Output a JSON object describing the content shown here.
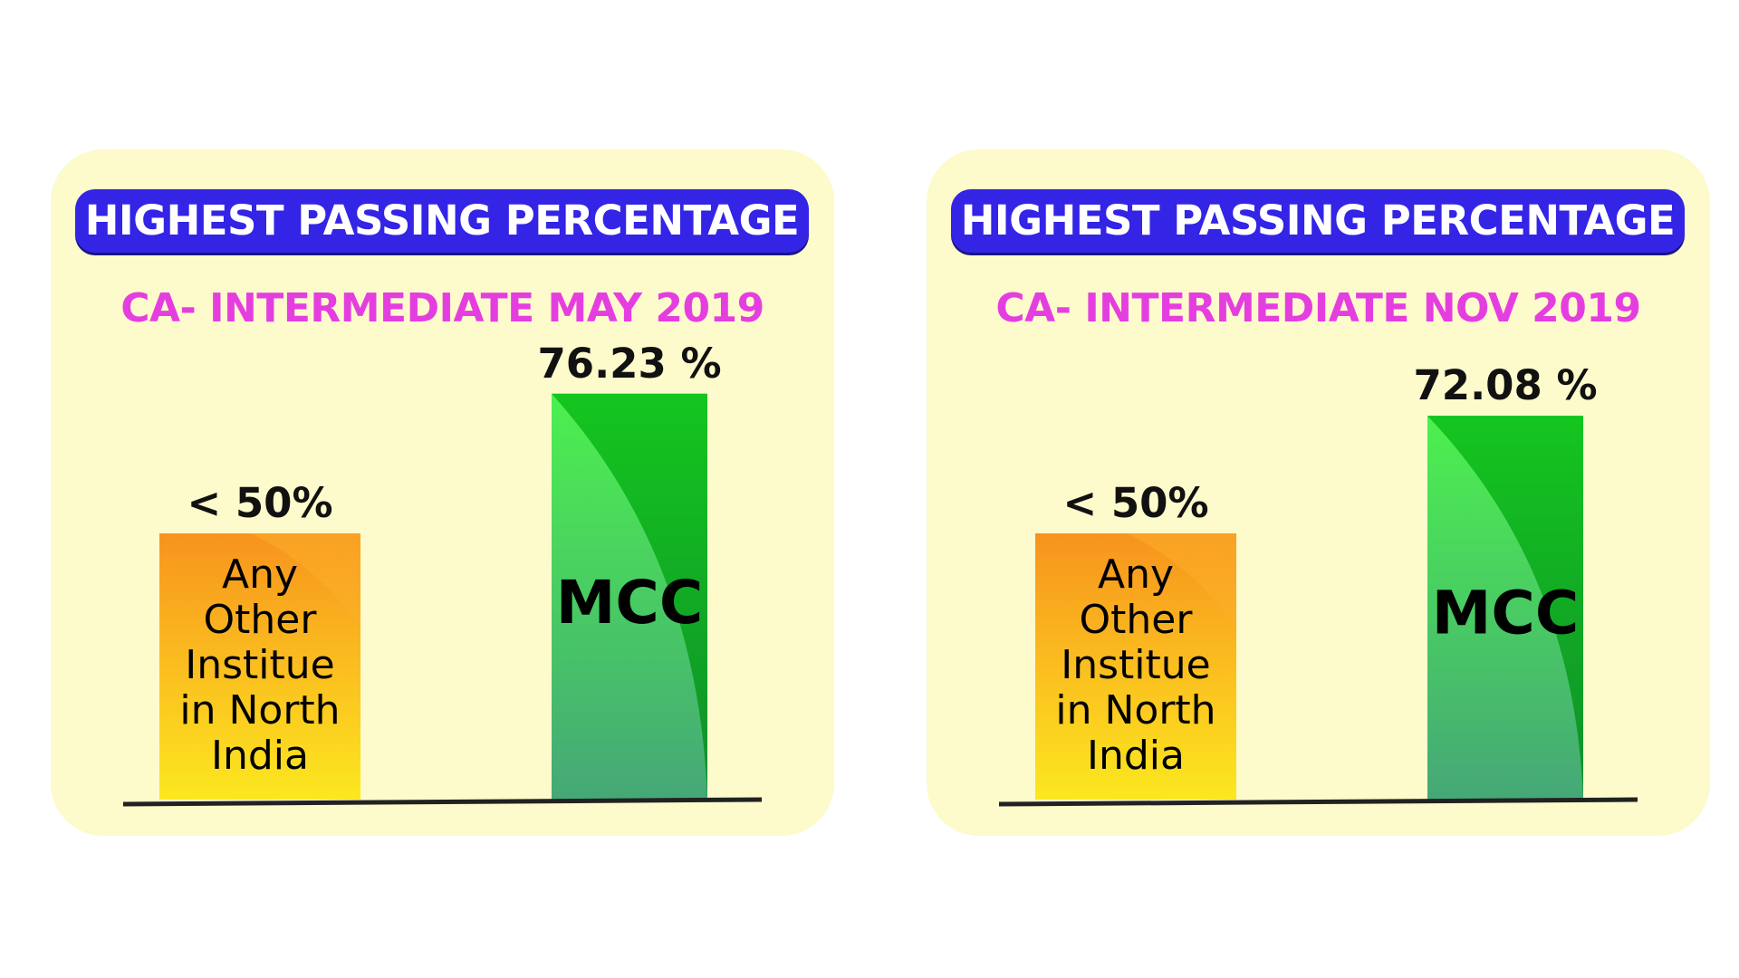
{
  "chart_data": [
    {
      "type": "bar",
      "title": "HIGHEST PASSING PERCENTAGE",
      "subtitle": "CA- INTERMEDIATE MAY 2019",
      "categories": [
        "Any Other Institue in North India",
        "MCC"
      ],
      "category_lines": [
        [
          "Any",
          "Other",
          "Institue",
          "in North",
          "India"
        ],
        [
          "MCC"
        ]
      ],
      "values": [
        50,
        76.23
      ],
      "data_labels": [
        "< 50%",
        "76.23 %"
      ],
      "colors": [
        "#f7a11e",
        "#3fdf57"
      ],
      "ylim": [
        0,
        100
      ],
      "grid": false
    },
    {
      "type": "bar",
      "title": "HIGHEST PASSING PERCENTAGE",
      "subtitle": "CA- INTERMEDIATE NOV 2019",
      "categories": [
        "Any Other Institue in North India",
        "MCC"
      ],
      "category_lines": [
        [
          "Any",
          "Other",
          "Institue",
          "in North",
          "India"
        ],
        [
          "MCC"
        ]
      ],
      "values": [
        50,
        72.08
      ],
      "data_labels": [
        "< 50%",
        "72.08 %"
      ],
      "colors": [
        "#f7a11e",
        "#3fdf57"
      ],
      "ylim": [
        0,
        100
      ],
      "grid": false
    }
  ]
}
